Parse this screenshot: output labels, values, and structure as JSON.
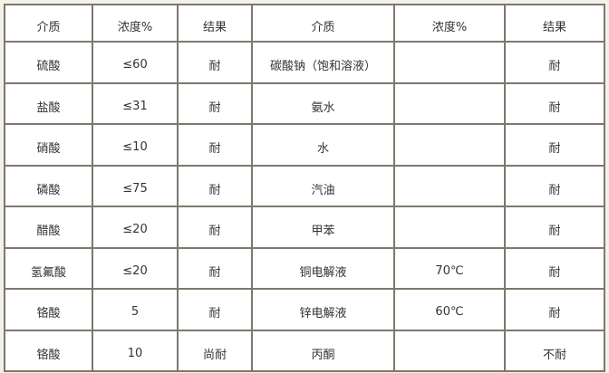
{
  "table": {
    "headers": [
      "介质",
      "浓度%",
      "结果",
      "介质",
      "浓度%",
      "结果"
    ],
    "rows": [
      [
        "硫酸",
        "≤60",
        "耐",
        "碳酸钠（饱和溶液）",
        "",
        "耐"
      ],
      [
        "盐酸",
        "≤31",
        "耐",
        "氨水",
        "",
        "耐"
      ],
      [
        "硝酸",
        "≤10",
        "耐",
        "水",
        "",
        "耐"
      ],
      [
        "磷酸",
        "≤75",
        "耐",
        "汽油",
        "",
        "耐"
      ],
      [
        "醋酸",
        "≤20",
        "耐",
        "甲苯",
        "",
        "耐"
      ],
      [
        "氢氟酸",
        "≤20",
        "耐",
        "铜电解液",
        "70℃",
        "耐"
      ],
      [
        "铬酸",
        "5",
        "耐",
        "锌电解液",
        "60℃",
        "耐"
      ],
      [
        "铬酸",
        "10",
        "尚耐",
        "丙酮",
        "",
        "不耐"
      ]
    ]
  }
}
